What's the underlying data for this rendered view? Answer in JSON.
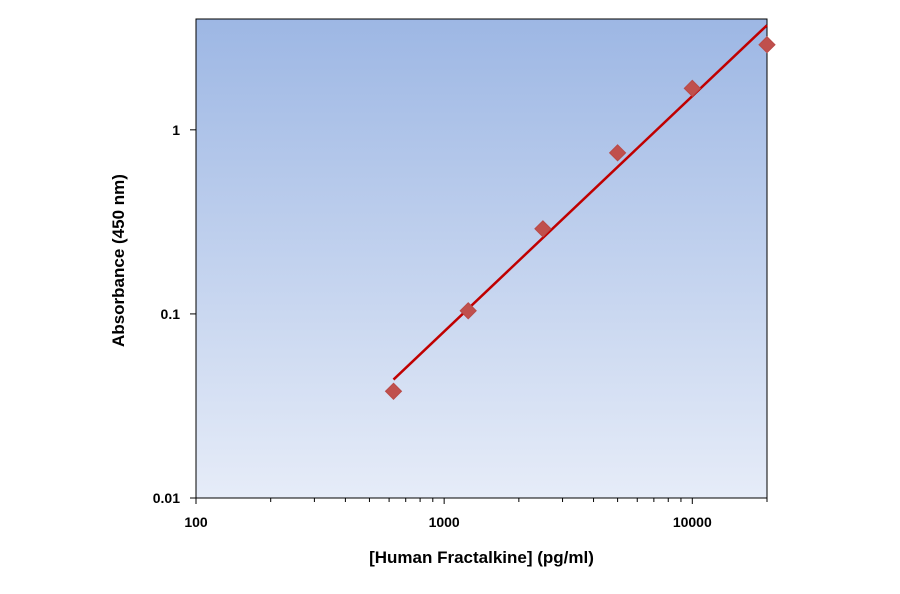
{
  "chart_data": {
    "type": "scatter",
    "xlabel": "[Human Fractalkine] (pg/ml)",
    "ylabel": "Absorbance (450 nm)",
    "x_scale": "log",
    "y_scale": "log",
    "xlim": [
      100,
      20000
    ],
    "ylim": [
      0.01,
      4
    ],
    "x_ticks": [
      100,
      1000,
      10000
    ],
    "x_tick_labels": [
      "100",
      "1000",
      "10000"
    ],
    "y_ticks": [
      0.01,
      0.1,
      1
    ],
    "y_tick_labels": [
      "0.01",
      "0.1",
      "1"
    ],
    "grid": false,
    "series": [
      {
        "type": "scatter",
        "marker": "diamond",
        "color": "#c0504d",
        "x": [
          625,
          1250,
          2500,
          5000,
          10000,
          20000
        ],
        "y": [
          0.038,
          0.104,
          0.29,
          0.75,
          1.68,
          2.9
        ]
      },
      {
        "type": "line",
        "color": "#c00000",
        "x": [
          625,
          20000
        ],
        "y": [
          0.044,
          3.7
        ]
      }
    ]
  },
  "colors": {
    "plot_bg_top": "#9db7e4",
    "plot_bg_bottom": "#e6ecf8",
    "marker": "#c0504d",
    "fit_line": "#c00000"
  }
}
